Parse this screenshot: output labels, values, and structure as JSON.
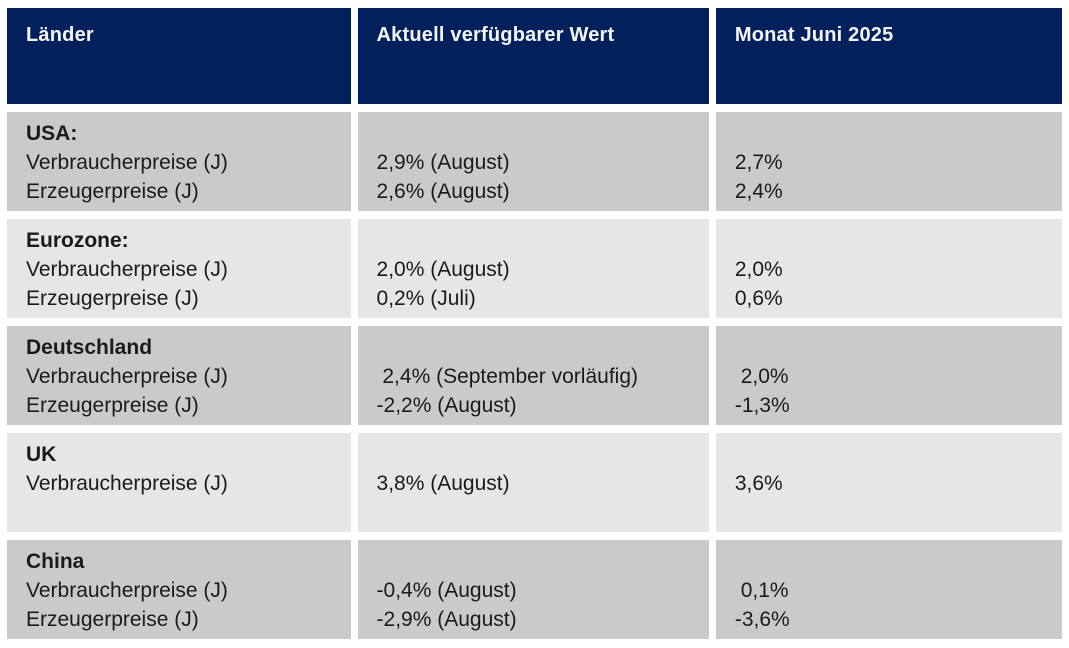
{
  "colors": {
    "header_bg": "#02215c",
    "header_text": "#f4f6f9",
    "row_dark": "#cacacd",
    "row_light": "#e6e6e8",
    "text": "#1b1b1b",
    "page_bg": "#ffffff"
  },
  "table": {
    "columns": [
      "Länder",
      "Aktuell verfügbarer Wert",
      "Monat Juni 2025"
    ],
    "rows": [
      {
        "country": "USA:",
        "labels": [
          "Verbraucherpreise (J)",
          "Erzeugerpreise (J)"
        ],
        "current": [
          "2,9% (August)",
          "2,6% (August)"
        ],
        "june": [
          "2,7%",
          "2,4%"
        ]
      },
      {
        "country": "Eurozone:",
        "labels": [
          "Verbraucherpreise (J)",
          "Erzeugerpreise (J)"
        ],
        "current": [
          "2,0% (August)",
          "0,2% (Juli)"
        ],
        "june": [
          "2,0%",
          "0,6%"
        ]
      },
      {
        "country": "Deutschland",
        "labels": [
          "Verbraucherpreise (J)",
          "Erzeugerpreise (J)"
        ],
        "current": [
          " 2,4% (September vorläufig)",
          "-2,2% (August)"
        ],
        "june": [
          " 2,0%",
          "-1,3%"
        ]
      },
      {
        "country": "UK",
        "labels": [
          "Verbraucherpreise (J)"
        ],
        "current": [
          "3,8% (August)"
        ],
        "june": [
          "3,6%"
        ]
      },
      {
        "country": "China",
        "labels": [
          "Verbraucherpreise (J)",
          "Erzeugerpreise (J)"
        ],
        "current": [
          "-0,4% (August)",
          "-2,9% (August)"
        ],
        "june": [
          " 0,1%",
          "-3,6%"
        ]
      }
    ]
  }
}
